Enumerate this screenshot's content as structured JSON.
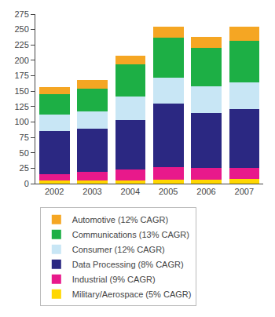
{
  "chart_data": {
    "type": "bar",
    "stacked": true,
    "categories": [
      "2002",
      "2003",
      "2004",
      "2005",
      "2006",
      "2007"
    ],
    "series": [
      {
        "name": "Military/Aerospace (5% CAGR)",
        "color": "#FFD700",
        "values": [
          5,
          5,
          5,
          7,
          7,
          8
        ]
      },
      {
        "name": "Industrial (9% CAGR)",
        "color": "#E8198B",
        "values": [
          10,
          14,
          18,
          20,
          18,
          18
        ]
      },
      {
        "name": "Data Processing (8% CAGR)",
        "color": "#2B2882",
        "values": [
          70,
          70,
          80,
          103,
          90,
          95
        ]
      },
      {
        "name": "Consumer (12% CAGR)",
        "color": "#C8E6F5",
        "values": [
          27,
          28,
          38,
          42,
          43,
          43
        ]
      },
      {
        "name": "Communications (13% CAGR)",
        "color": "#1DAF45",
        "values": [
          33,
          37,
          52,
          65,
          62,
          68
        ]
      },
      {
        "name": "Automotive (12% CAGR)",
        "color": "#F5A623",
        "values": [
          12,
          14,
          14,
          18,
          18,
          22
        ]
      }
    ],
    "ylim": [
      0,
      275
    ],
    "yticks": [
      0,
      25,
      50,
      75,
      100,
      125,
      150,
      175,
      200,
      225,
      250,
      275
    ],
    "grid": false,
    "legend": "bottom"
  }
}
